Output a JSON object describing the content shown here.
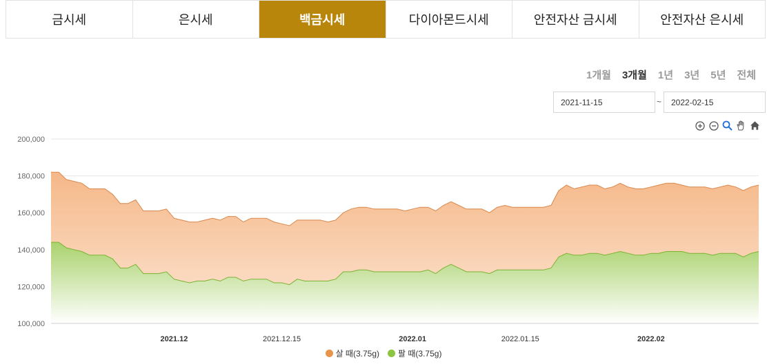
{
  "tabs": [
    {
      "label": "금시세",
      "active": false
    },
    {
      "label": "은시세",
      "active": false
    },
    {
      "label": "백금시세",
      "active": true
    },
    {
      "label": "다이아몬드시세",
      "active": false
    },
    {
      "label": "안전자산 금시세",
      "active": false
    },
    {
      "label": "안전자산 은시세",
      "active": false
    }
  ],
  "periods": [
    {
      "label": "1개월",
      "active": false
    },
    {
      "label": "3개월",
      "active": true
    },
    {
      "label": "1년",
      "active": false
    },
    {
      "label": "3년",
      "active": false
    },
    {
      "label": "5년",
      "active": false
    },
    {
      "label": "전체",
      "active": false
    }
  ],
  "date_range": {
    "from": "2021-11-15",
    "separator": "~",
    "to": "2022-02-15"
  },
  "toolbar": [
    "zoom-in-icon",
    "zoom-out-icon",
    "magnify-icon",
    "pan-hand-icon",
    "home-icon"
  ],
  "colors": {
    "tab_active": "#b8860b",
    "buy": "#e8944a",
    "sell": "#8cc53f"
  },
  "chart_data": {
    "type": "area",
    "y_range": [
      100000,
      200000
    ],
    "y_ticks": [
      "100,000",
      "120,000",
      "140,000",
      "160,000",
      "180,000",
      "200,000"
    ],
    "x_ticks": [
      {
        "label": "2021.12",
        "date": "2021-12-01",
        "bold": true
      },
      {
        "label": "2021.12.15",
        "date": "2021-12-15",
        "bold": false
      },
      {
        "label": "2022.01",
        "date": "2022-01-01",
        "bold": true
      },
      {
        "label": "2022.01.15",
        "date": "2022-01-15",
        "bold": false
      },
      {
        "label": "2022.02",
        "date": "2022-02-01",
        "bold": true
      }
    ],
    "x": [
      "2021-11-15",
      "2021-11-16",
      "2021-11-17",
      "2021-11-18",
      "2021-11-19",
      "2021-11-20",
      "2021-11-21",
      "2021-11-22",
      "2021-11-23",
      "2021-11-24",
      "2021-11-25",
      "2021-11-26",
      "2021-11-27",
      "2021-11-28",
      "2021-11-29",
      "2021-11-30",
      "2021-12-01",
      "2021-12-02",
      "2021-12-03",
      "2021-12-04",
      "2021-12-05",
      "2021-12-06",
      "2021-12-07",
      "2021-12-08",
      "2021-12-09",
      "2021-12-10",
      "2021-12-11",
      "2021-12-12",
      "2021-12-13",
      "2021-12-14",
      "2021-12-15",
      "2021-12-16",
      "2021-12-17",
      "2021-12-18",
      "2021-12-19",
      "2021-12-20",
      "2021-12-21",
      "2021-12-22",
      "2021-12-23",
      "2021-12-24",
      "2021-12-25",
      "2021-12-26",
      "2021-12-27",
      "2021-12-28",
      "2021-12-29",
      "2021-12-30",
      "2021-12-31",
      "2022-01-01",
      "2022-01-02",
      "2022-01-03",
      "2022-01-04",
      "2022-01-05",
      "2022-01-06",
      "2022-01-07",
      "2022-01-08",
      "2022-01-09",
      "2022-01-10",
      "2022-01-11",
      "2022-01-12",
      "2022-01-13",
      "2022-01-14",
      "2022-01-15",
      "2022-01-16",
      "2022-01-17",
      "2022-01-18",
      "2022-01-19",
      "2022-01-20",
      "2022-01-21",
      "2022-01-22",
      "2022-01-23",
      "2022-01-24",
      "2022-01-25",
      "2022-01-26",
      "2022-01-27",
      "2022-01-28",
      "2022-01-29",
      "2022-01-30",
      "2022-01-31",
      "2022-02-01",
      "2022-02-02",
      "2022-02-03",
      "2022-02-04",
      "2022-02-05",
      "2022-02-06",
      "2022-02-07",
      "2022-02-08",
      "2022-02-09",
      "2022-02-10",
      "2022-02-11",
      "2022-02-12",
      "2022-02-13",
      "2022-02-14",
      "2022-02-15"
    ],
    "series": [
      {
        "name": "살 때(3.75g)",
        "color": "#e8944a",
        "values": [
          182000,
          182000,
          178000,
          177000,
          176000,
          173000,
          173000,
          173000,
          170000,
          165000,
          165000,
          167000,
          161000,
          161000,
          161000,
          162000,
          157000,
          156000,
          155000,
          155000,
          156000,
          157000,
          156000,
          158000,
          158000,
          155000,
          157000,
          157000,
          157000,
          155000,
          154000,
          153000,
          156000,
          156000,
          156000,
          156000,
          155000,
          156000,
          160000,
          162000,
          163000,
          163000,
          162000,
          162000,
          162000,
          162000,
          161000,
          162000,
          163000,
          163000,
          161000,
          164000,
          166000,
          164000,
          162000,
          162000,
          162000,
          160000,
          163000,
          164000,
          163000,
          163000,
          163000,
          163000,
          163000,
          164000,
          172000,
          175000,
          173000,
          174000,
          175000,
          175000,
          173000,
          174000,
          176000,
          174000,
          173000,
          173000,
          174000,
          175000,
          176000,
          176000,
          175000,
          174000,
          174000,
          174000,
          173000,
          174000,
          175000,
          174000,
          172000,
          174000,
          175000
        ]
      },
      {
        "name": "팔 때(3.75g)",
        "color": "#8cc53f",
        "values": [
          144000,
          144000,
          141000,
          140000,
          139000,
          137000,
          137000,
          137000,
          135000,
          130000,
          130000,
          132000,
          127000,
          127000,
          127000,
          128000,
          124000,
          123000,
          122000,
          123000,
          123000,
          124000,
          123000,
          125000,
          125000,
          123000,
          124000,
          124000,
          124000,
          122000,
          122000,
          121000,
          124000,
          123000,
          123000,
          123000,
          123000,
          124000,
          128000,
          128000,
          129000,
          129000,
          128000,
          128000,
          128000,
          128000,
          128000,
          128000,
          128000,
          129000,
          127000,
          130000,
          132000,
          130000,
          128000,
          128000,
          128000,
          127000,
          129000,
          129000,
          129000,
          129000,
          129000,
          129000,
          129000,
          130000,
          136000,
          138000,
          137000,
          137000,
          138000,
          138000,
          137000,
          138000,
          139000,
          138000,
          137000,
          137000,
          138000,
          138000,
          139000,
          139000,
          139000,
          138000,
          138000,
          138000,
          137000,
          138000,
          138000,
          138000,
          136000,
          138000,
          139000
        ]
      }
    ],
    "legend_position": "bottom-center",
    "grid": true
  }
}
